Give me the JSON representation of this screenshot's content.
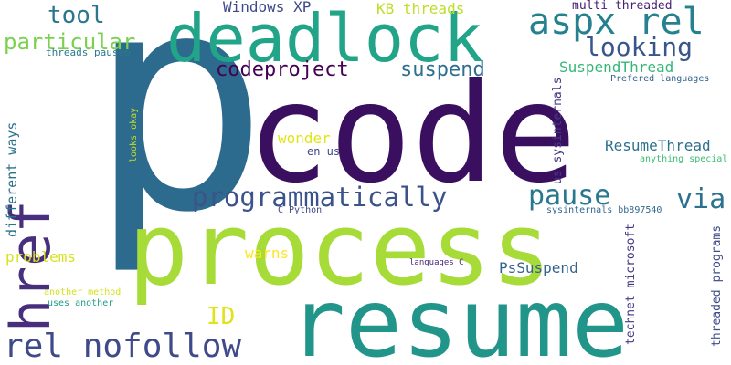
{
  "words": [
    {
      "id": "p",
      "text": "p",
      "color": "#2c6a8e"
    },
    {
      "id": "code",
      "text": "code",
      "color": "#3b0f5f"
    },
    {
      "id": "process",
      "text": "process",
      "color": "#a6db38"
    },
    {
      "id": "resume",
      "text": "resume",
      "color": "#22958b"
    },
    {
      "id": "deadlock",
      "text": "deadlock",
      "color": "#21a487"
    },
    {
      "id": "href",
      "text": "href",
      "color": "#472f7d"
    },
    {
      "id": "rel-nofollow",
      "text": "rel nofollow",
      "color": "#3e4a89"
    },
    {
      "id": "aspx-rel",
      "text": "aspx rel",
      "color": "#25818e"
    },
    {
      "id": "programmatically",
      "text": "programmatically",
      "color": "#3b528b"
    },
    {
      "id": "pause",
      "text": "pause",
      "color": "#2a788e"
    },
    {
      "id": "via",
      "text": "via",
      "color": "#2c728e"
    },
    {
      "id": "looking",
      "text": "looking",
      "color": "#39568c"
    },
    {
      "id": "codeproject",
      "text": "codeproject",
      "color": "#440154"
    },
    {
      "id": "suspend",
      "text": "suspend",
      "color": "#2d6f8e"
    },
    {
      "id": "particular",
      "text": "particular",
      "color": "#7ad151"
    },
    {
      "id": "tool",
      "text": "tool",
      "color": "#2a768e"
    },
    {
      "id": "id",
      "text": "ID",
      "color": "#dfe318"
    },
    {
      "id": "windows-xp",
      "text": "Windows XP",
      "color": "#3e4989"
    },
    {
      "id": "kb-threads",
      "text": "KB threads",
      "color": "#bddf26"
    },
    {
      "id": "multi-threaded",
      "text": "multi threaded",
      "color": "#482374"
    },
    {
      "id": "suspendthread",
      "text": "SuspendThread",
      "color": "#35b779"
    },
    {
      "id": "prefered-languages",
      "text": "Prefered languages",
      "color": "#33638d"
    },
    {
      "id": "resumethread",
      "text": "ResumeThread",
      "color": "#2d718e"
    },
    {
      "id": "anything-special",
      "text": "anything special",
      "color": "#3dbc74"
    },
    {
      "id": "us-sysinternals",
      "text": "us sysinternals",
      "color": "#443983"
    },
    {
      "id": "wonder",
      "text": "wonder",
      "color": "#e2e418"
    },
    {
      "id": "en-us",
      "text": "en us",
      "color": "#3f4788"
    },
    {
      "id": "threads-pausep",
      "text": "threads pausep",
      "color": "#2a788e"
    },
    {
      "id": "different-ways",
      "text": "different ways",
      "color": "#2c728e"
    },
    {
      "id": "looks-okay",
      "text": "looks okay",
      "color": "#c2df23"
    },
    {
      "id": "c-python",
      "text": "C Python",
      "color": "#3e4a89"
    },
    {
      "id": "sysinternals-bb",
      "text": "sysinternals bb897540",
      "color": "#31688e"
    },
    {
      "id": "technet-microsoft",
      "text": "technet microsoft",
      "color": "#453882"
    },
    {
      "id": "threaded-programs",
      "text": "threaded programs",
      "color": "#3e4c8a"
    },
    {
      "id": "warns",
      "text": "warns",
      "color": "#fde725"
    },
    {
      "id": "problems",
      "text": "problems",
      "color": "#d8e219"
    },
    {
      "id": "pssuspend",
      "text": "PsSuspend",
      "color": "#33638d"
    },
    {
      "id": "languages-c",
      "text": "languages C",
      "color": "#482878"
    },
    {
      "id": "another-method",
      "text": "another method",
      "color": "#d5e21a"
    },
    {
      "id": "uses-another",
      "text": "uses another",
      "color": "#1f9e89"
    }
  ]
}
